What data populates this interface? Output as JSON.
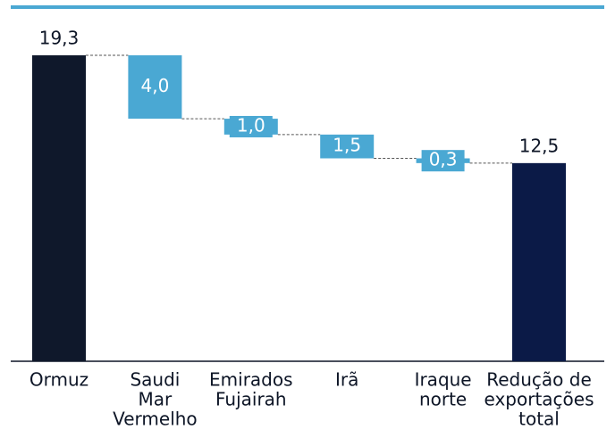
{
  "chart_data": {
    "type": "waterfall",
    "categories": [
      [
        "Ormuz"
      ],
      [
        "Saudi",
        "Mar",
        "Vermelho"
      ],
      [
        "Emirados",
        "Fujairah"
      ],
      [
        "Irã"
      ],
      [
        "Iraque",
        "norte"
      ],
      [
        "Redução de",
        "exportações",
        "total"
      ]
    ],
    "values": [
      19.3,
      4.0,
      1.0,
      1.5,
      0.3,
      12.5
    ],
    "value_labels": [
      "19,3",
      "4,0",
      "1,0",
      "1,5",
      "0,3",
      "12,5"
    ],
    "measure": [
      "total",
      "decrease",
      "decrease",
      "decrease",
      "decrease",
      "total"
    ],
    "colors": [
      "#0f182b",
      "#4aa8d3",
      "#4aa8d3",
      "#4aa8d3",
      "#4aa8d3",
      "#0b1a47"
    ]
  }
}
